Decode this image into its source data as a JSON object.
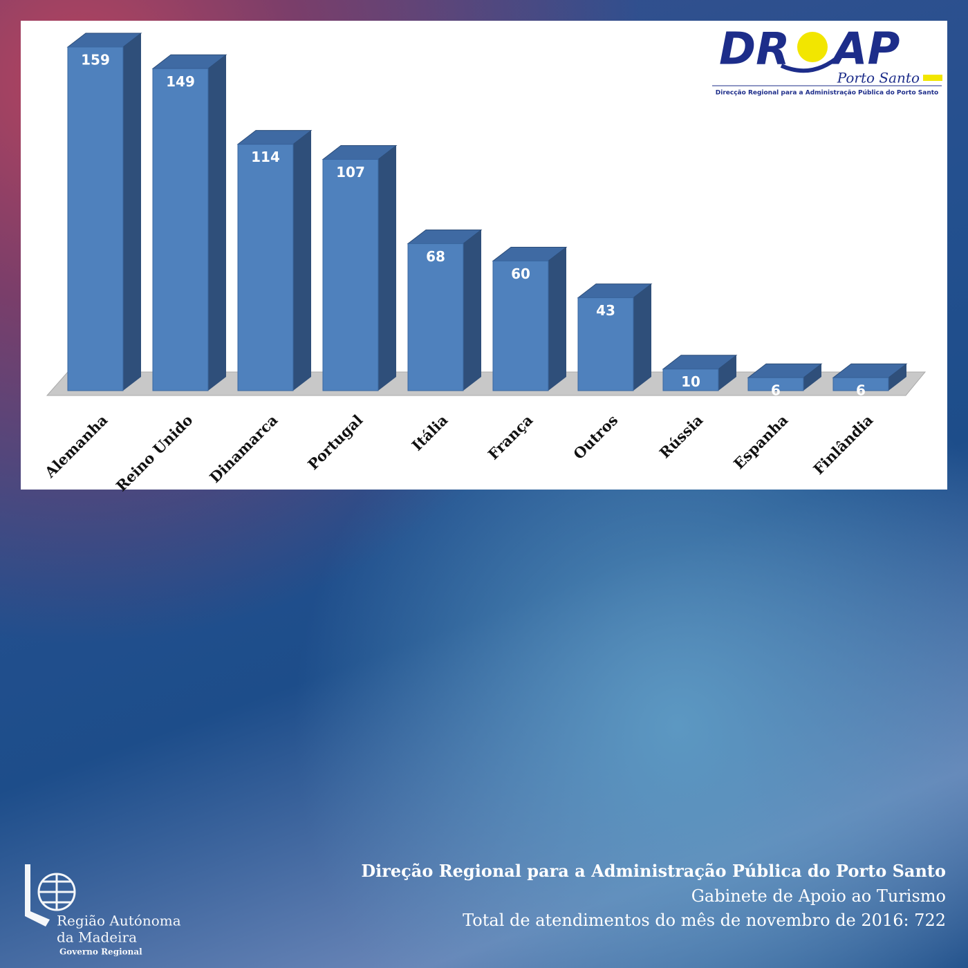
{
  "chart_data": {
    "type": "bar3d",
    "categories": [
      "Alemanha",
      "Reino Unido",
      "Dinamarca",
      "Portugal",
      "Itália",
      "França",
      "Outros",
      "Rússia",
      "Espanha",
      "Finlândia"
    ],
    "values": [
      159,
      149,
      114,
      107,
      68,
      60,
      43,
      10,
      6,
      6
    ],
    "color": "#4f81bd"
  },
  "logo": {
    "left": "DR",
    "right": "AP",
    "place": "Porto Santo",
    "caption": "Direcção Regional para a Administração Pública do Porto Santo"
  },
  "footer": {
    "line1": "Direção Regional para a Administração Pública do Porto Santo",
    "line2": "Gabinete de Apoio ao Turismo",
    "line3": "Total de atendimentos do mês de novembro de 2016: 722"
  },
  "emblem": {
    "line1": "Região Autónoma",
    "line2": "da Madeira",
    "line3": "Governo Regional"
  }
}
